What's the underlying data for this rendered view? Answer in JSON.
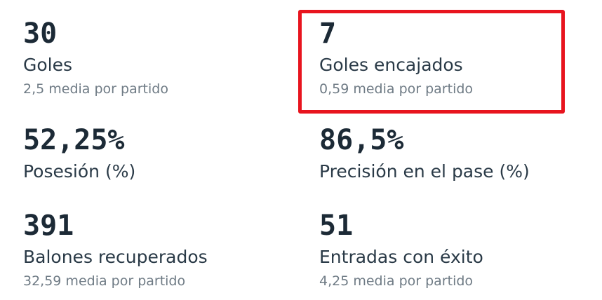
{
  "stats": [
    {
      "value": "30",
      "label": "Goles",
      "sub": "2,5 media por partido"
    },
    {
      "value": "7",
      "label": "Goles encajados",
      "sub": "0,59 media por partido"
    },
    {
      "value": "52,25%",
      "label": "Posesión (%)",
      "sub": ""
    },
    {
      "value": "86,5%",
      "label": "Precisión en el pase (%)",
      "sub": ""
    },
    {
      "value": "391",
      "label": "Balones recuperados",
      "sub": "32,59 media por partido"
    },
    {
      "value": "51",
      "label": "Entradas con éxito",
      "sub": "4,25 media por partido"
    }
  ],
  "highlight": {
    "color": "#e8141e",
    "target": "goals-conceded"
  }
}
